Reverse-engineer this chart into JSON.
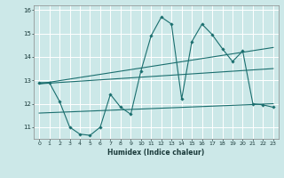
{
  "xlabel": "Humidex (Indice chaleur)",
  "xlim": [
    -0.5,
    23.5
  ],
  "ylim": [
    10.5,
    16.2
  ],
  "yticks": [
    11,
    12,
    13,
    14,
    15,
    16
  ],
  "xticks": [
    0,
    1,
    2,
    3,
    4,
    5,
    6,
    7,
    8,
    9,
    10,
    11,
    12,
    13,
    14,
    15,
    16,
    17,
    18,
    19,
    20,
    21,
    22,
    23
  ],
  "bg_color": "#cce8e8",
  "grid_color": "#ffffff",
  "line_color": "#1a6e6e",
  "main_line": {
    "x": [
      0,
      1,
      2,
      3,
      4,
      5,
      6,
      7,
      8,
      9,
      10,
      11,
      12,
      13,
      14,
      15,
      16,
      17,
      18,
      19,
      20,
      21,
      22,
      23
    ],
    "y": [
      12.9,
      12.9,
      12.1,
      11.0,
      10.7,
      10.65,
      11.0,
      12.4,
      11.85,
      11.55,
      13.4,
      14.9,
      15.7,
      15.4,
      12.2,
      14.65,
      15.4,
      14.95,
      14.35,
      13.8,
      14.25,
      12.0,
      11.95,
      11.85
    ]
  },
  "trend_lines": [
    {
      "x": [
        0,
        23
      ],
      "y": [
        12.85,
        13.5
      ]
    },
    {
      "x": [
        0,
        23
      ],
      "y": [
        12.85,
        14.4
      ]
    },
    {
      "x": [
        0,
        23
      ],
      "y": [
        11.6,
        12.0
      ]
    }
  ]
}
